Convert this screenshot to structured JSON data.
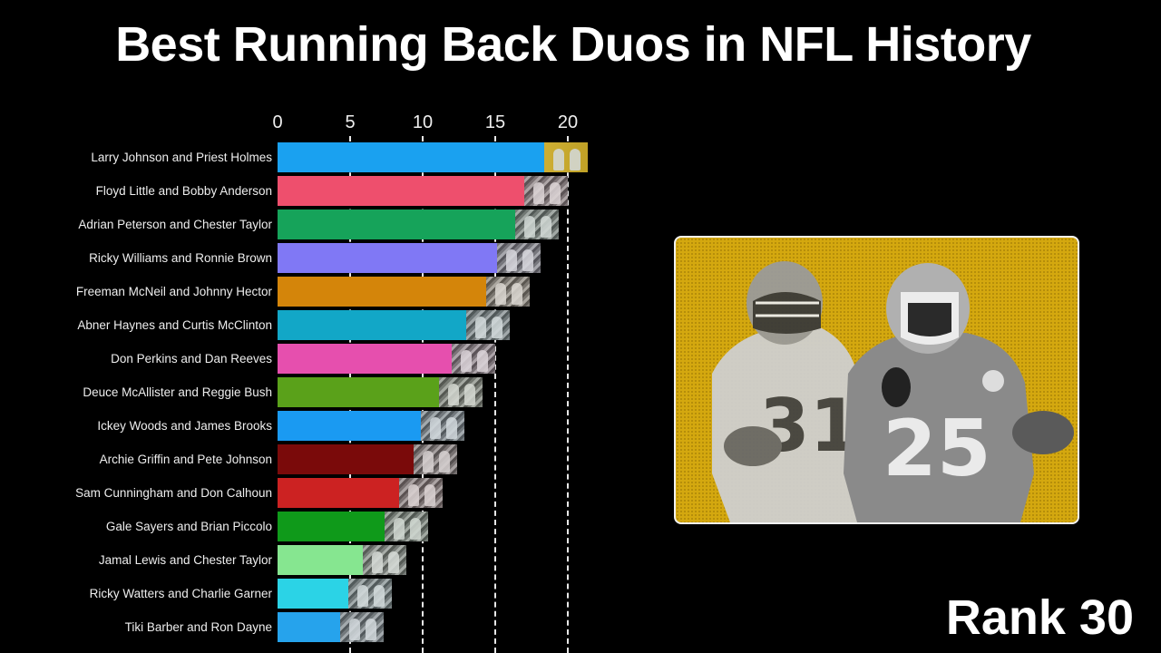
{
  "title": "Best Running Back Duos in NFL History",
  "rank_label": "Rank 30",
  "photo_card": {
    "description": "Two Kansas City Chiefs running backs, jerseys 31 and 25, grayscale on yellow halftone background",
    "jersey_numbers": [
      "31",
      "25"
    ],
    "background_color": "#d4a80f"
  },
  "chart_data": {
    "type": "bar",
    "orientation": "horizontal",
    "title": "Best Running Back Duos in NFL History",
    "xlabel": "",
    "ylabel": "",
    "xlim": [
      0,
      21.5
    ],
    "ticks": [
      0,
      5,
      10,
      15,
      20
    ],
    "tick_labels": [
      "0",
      "5",
      "10",
      "15",
      "20"
    ],
    "grid": "vertical dashed",
    "axis_position": "top",
    "categories": [
      "Larry Johnson and Priest Holmes",
      "Floyd Little and Bobby Anderson",
      "Adrian Peterson and Chester Taylor",
      "Ricky Williams and Ronnie Brown",
      "Freeman McNeil and Johnny Hector",
      "Abner Haynes and Curtis McClinton",
      "Don Perkins and Dan Reeves",
      "Deuce McAllister and Reggie Bush",
      "Ickey Woods and James Brooks",
      "Archie Griffin and Pete Johnson",
      "Sam Cunningham and Don Calhoun",
      "Gale Sayers and Brian Piccolo",
      "Jamal Lewis and Chester Taylor",
      "Ricky Watters and Charlie Garner",
      "Tiki Barber and Ron Dayne"
    ],
    "values": [
      21.4,
      20.0,
      19.4,
      18.1,
      17.4,
      16.0,
      15.0,
      14.1,
      12.9,
      12.4,
      11.4,
      10.4,
      8.9,
      7.9,
      7.3
    ],
    "colors": [
      "#1aa1f0",
      "#ee4f6d",
      "#16a35a",
      "#8078f5",
      "#d4850a",
      "#12a7c7",
      "#e64fae",
      "#5aa11a",
      "#1a9af2",
      "#7a0a0a",
      "#cc2222",
      "#0f9a1a",
      "#86e690",
      "#2bd3e6",
      "#26a3ec"
    ]
  }
}
